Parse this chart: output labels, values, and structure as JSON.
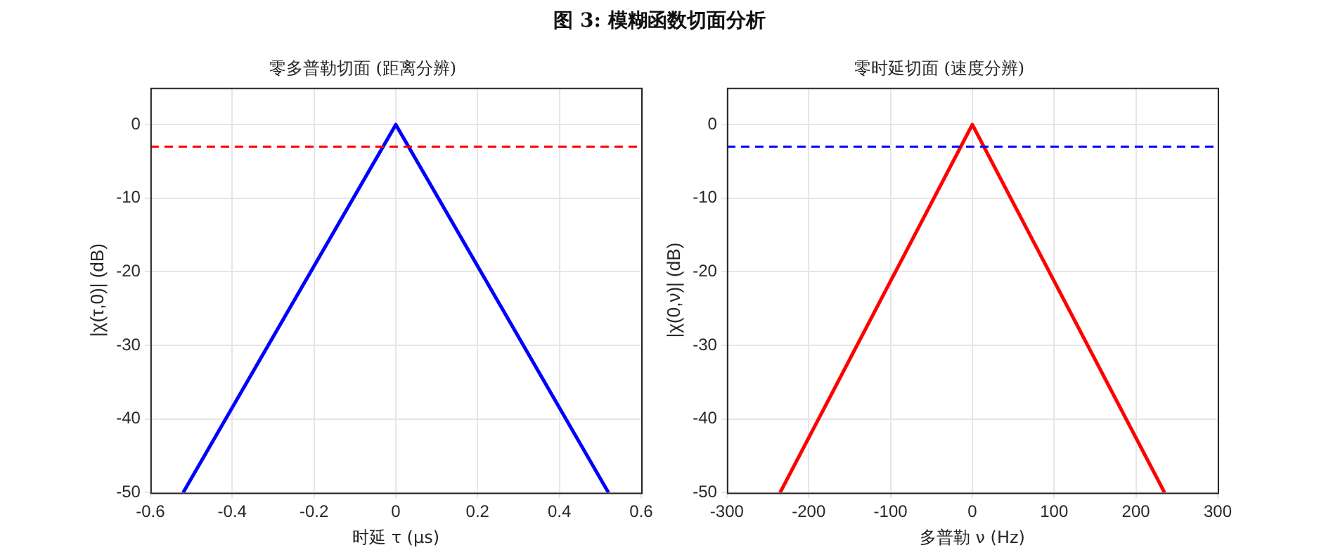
{
  "chart_data": [
    {
      "type": "line",
      "title": "零多普勒切面 (距离分辨)",
      "xlabel": "时延 τ (μs)",
      "ylabel": "|χ(τ,0)| (dB)",
      "annotations": [
        "图 3: 模糊函数切面分析"
      ],
      "series": [
        {
          "color": "#0000ff",
          "x": [
            -0.52,
            0,
            0.52
          ],
          "values": [
            -50,
            0,
            -50
          ]
        }
      ],
      "xlim": [
        -0.6,
        0.6
      ],
      "xticks": [
        -0.6,
        -0.4,
        -0.2,
        0,
        0.2,
        0.4,
        0.6
      ],
      "ylim": [
        -50,
        5
      ],
      "yticks": [
        -50,
        -40,
        -30,
        -20,
        -10,
        0
      ],
      "ref_lines": [
        {
          "axis": "y",
          "value": -3,
          "color": "#ff0000",
          "line_style": "dashed"
        }
      ],
      "grid": true,
      "legend": false,
      "marker": "none",
      "line_style": "solid"
    },
    {
      "type": "line",
      "title": "零时延切面 (速度分辨)",
      "xlabel": "多普勒 ν (Hz)",
      "ylabel": "|χ(0,ν)| (dB)",
      "series": [
        {
          "color": "#ff0000",
          "x": [
            -235,
            0,
            235
          ],
          "values": [
            -50,
            0,
            -50
          ]
        }
      ],
      "xlim": [
        -300,
        300
      ],
      "xticks": [
        -300,
        -200,
        -100,
        0,
        100,
        200,
        300
      ],
      "ylim": [
        -50,
        5
      ],
      "yticks": [
        -50,
        -40,
        -30,
        -20,
        -10,
        0
      ],
      "ref_lines": [
        {
          "axis": "y",
          "value": -3,
          "color": "#0000ff",
          "line_style": "dashed"
        }
      ],
      "grid": true,
      "legend": false,
      "marker": "none",
      "line_style": "solid"
    }
  ]
}
